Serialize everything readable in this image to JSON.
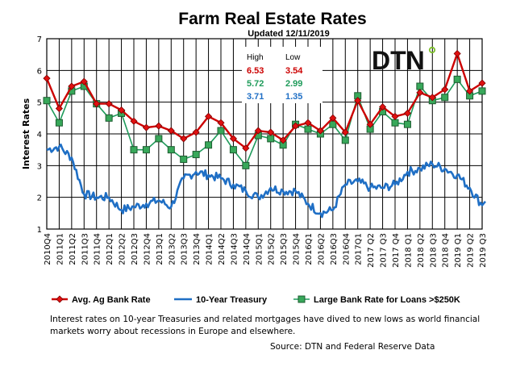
{
  "chart_data": {
    "type": "line",
    "title": "Farm Real Estate Rates",
    "subtitle": "Updated  12/11/2019",
    "ylabel": "Interest Rates",
    "xlabel": "",
    "ylim": [
      1,
      7
    ],
    "yticks": [
      1,
      2,
      3,
      4,
      5,
      6,
      7
    ],
    "grid": true,
    "legend_position": "bottom",
    "categories": [
      "2010Q4",
      "2011Q1",
      "2011Q2",
      "2011Q3",
      "2011Q4",
      "2012Q1",
      "2012Q2",
      "2012Q3",
      "2012Q4",
      "2013Q1",
      "2013Q2",
      "2013Q3",
      "2013Q4",
      "2014Q1",
      "2014Q2",
      "2014Q3",
      "2014Q4",
      "2015Q1",
      "2015Q2",
      "2015Q3",
      "2015Q4",
      "2016Q1",
      "2016Q2",
      "2016Q3",
      "2016Q4",
      "2017Q1",
      "2017 Q2",
      "2017 Q3",
      "2017 Q4",
      "2018 Q1",
      "2018 Q2",
      "2018 Q3",
      "2018 Q4",
      "2019 Q1",
      "2019 Q2",
      "2019 Q3"
    ],
    "series": [
      {
        "name": "Avg. Ag Bank Rate",
        "color": "#cc0000",
        "marker": "diamond",
        "values": [
          5.75,
          4.8,
          5.5,
          5.65,
          4.95,
          4.95,
          4.75,
          4.4,
          4.2,
          4.25,
          4.1,
          3.85,
          4.05,
          4.55,
          4.35,
          3.85,
          3.55,
          4.1,
          4.05,
          3.8,
          4.25,
          4.35,
          4.1,
          4.5,
          4.05,
          5.05,
          4.3,
          4.85,
          4.55,
          4.65,
          5.3,
          5.15,
          5.4,
          6.53,
          5.35,
          5.6
        ]
      },
      {
        "name": "10-Year Treasury",
        "color": "#1f6fc5",
        "marker": "none",
        "values": [
          3.5,
          3.6,
          3.25,
          2.1,
          2.0,
          2.0,
          1.6,
          1.7,
          1.8,
          1.9,
          1.7,
          2.6,
          2.8,
          2.7,
          2.6,
          2.4,
          2.2,
          2.0,
          2.3,
          2.2,
          2.2,
          1.8,
          1.5,
          1.6,
          2.4,
          2.5,
          2.3,
          2.3,
          2.4,
          2.8,
          2.9,
          3.05,
          2.9,
          2.7,
          2.3,
          1.75
        ]
      },
      {
        "name": "Large Bank Rate for Loans >$250K",
        "color": "#1e9b5a",
        "marker": "square",
        "values": [
          5.05,
          4.35,
          5.35,
          5.5,
          4.95,
          4.5,
          4.65,
          3.5,
          3.5,
          3.85,
          3.5,
          3.2,
          3.35,
          3.65,
          4.1,
          3.5,
          3.0,
          3.95,
          3.85,
          3.65,
          4.3,
          4.15,
          4.0,
          4.3,
          3.8,
          5.2,
          4.15,
          4.7,
          4.35,
          4.3,
          5.5,
          5.05,
          5.15,
          5.72,
          5.2,
          5.35
        ]
      }
    ],
    "stats_box": {
      "header_high": "High",
      "header_low": "Low",
      "rows": [
        {
          "high": "6.53",
          "low": "3.54",
          "color": "#cc0000"
        },
        {
          "high": "5.72",
          "low": "2.99",
          "color": "#1e9b5a"
        },
        {
          "high": "3.71",
          "low": "1.35",
          "color": "#1f6fc5"
        }
      ]
    }
  },
  "logo": {
    "text": "DTN",
    "dot_color": "#7cbf2a"
  },
  "note": "Interest rates on 10-year Treasuries and related mortgages have dived to new lows as world financial markets worry about recessions in Europe and elsewhere.",
  "source": "Source: DTN and Federal Reserve Data"
}
